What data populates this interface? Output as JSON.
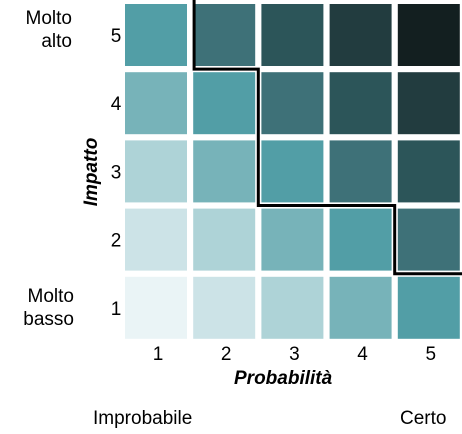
{
  "chart_data": {
    "type": "heatmap",
    "title": "",
    "xlabel": "Probabilità",
    "ylabel": "Impatto",
    "x_ticks": [
      "1",
      "2",
      "3",
      "4",
      "5"
    ],
    "y_ticks": [
      "1",
      "2",
      "3",
      "4",
      "5"
    ],
    "y_end_labels": {
      "low": "Molto\nbasso",
      "high": "Molto\nalto"
    },
    "x_end_labels": {
      "low": "Improbabile",
      "high": "Certo"
    },
    "values_note": "cell intensity = probability + impact (shade levels)",
    "matrix": [
      [
        2,
        3,
        4,
        5,
        6
      ],
      [
        3,
        4,
        5,
        6,
        7
      ],
      [
        4,
        5,
        6,
        7,
        8
      ],
      [
        5,
        6,
        7,
        8,
        9
      ],
      [
        6,
        7,
        8,
        9,
        10
      ]
    ],
    "colors": {
      "2": "#eaf4f6",
      "3": "#cce3e7",
      "4": "#aed3d7",
      "5": "#77b3b9",
      "6": "#529ea6",
      "7": "#3e7178",
      "8": "#2c5559",
      "9": "#223c3f",
      "10": "#131f20"
    },
    "threshold_line_color": "#000000"
  }
}
